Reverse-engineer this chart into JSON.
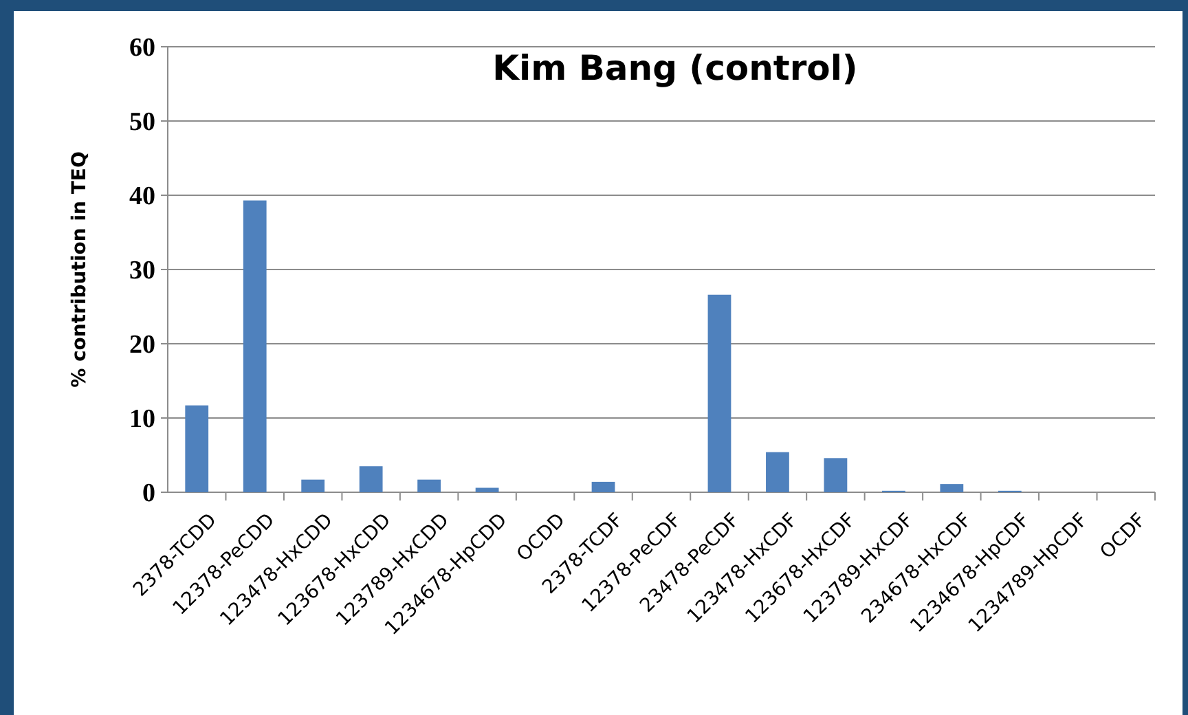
{
  "chart_data": {
    "type": "bar",
    "title": "Kim Bang (control)",
    "ylabel": "% contribution in TEQ",
    "categories": [
      "2378-TCDD",
      "12378-PeCDD",
      "123478-HxCDD",
      "123678-HxCDD",
      "123789-HxCDD",
      "1234678-HpCDD",
      "OCDD",
      "2378-TCDF",
      "12378-PeCDF",
      "23478-PeCDF",
      "123478-HxCDF",
      "123678-HxCDF",
      "123789-HxCDF",
      "234678-HxCDF",
      "1234678-HpCDF",
      "1234789-HpCDF",
      "OCDF"
    ],
    "values": [
      11.7,
      39.3,
      1.7,
      3.5,
      1.7,
      0.6,
      0,
      1.4,
      0,
      26.6,
      5.4,
      4.6,
      0.2,
      1.1,
      0.2,
      0,
      0
    ],
    "color": "#4f81bd",
    "ylim": [
      0,
      60
    ],
    "yticks": [
      0,
      10,
      20,
      30,
      40,
      50,
      60
    ],
    "grid": "y"
  }
}
